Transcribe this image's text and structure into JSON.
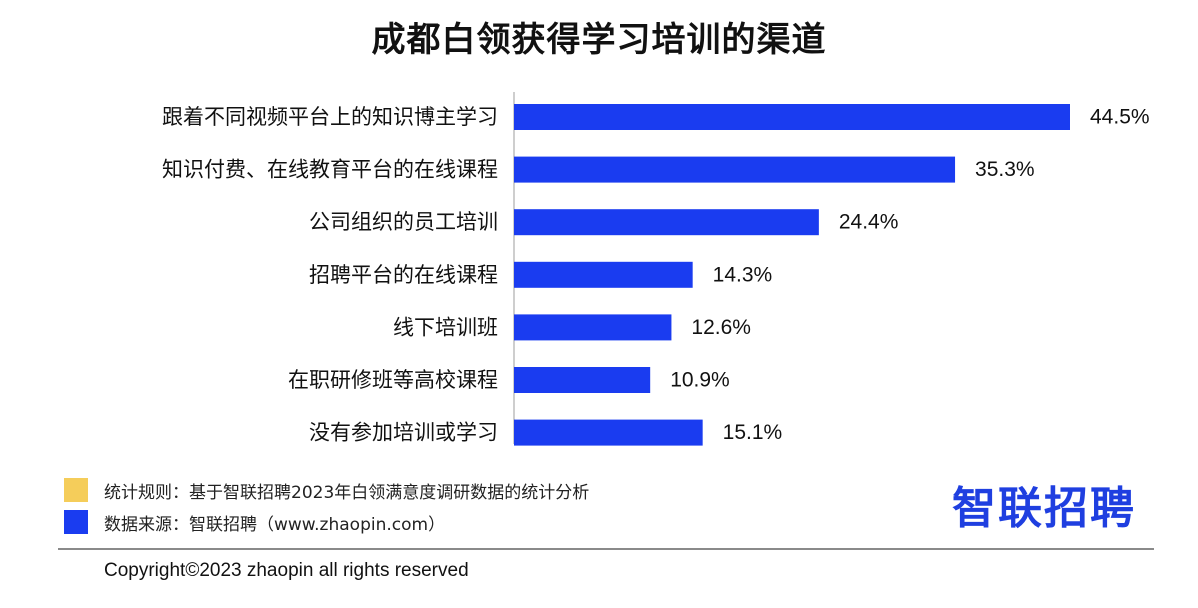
{
  "colors": {
    "bar": "#1a3cf0",
    "rule_swatch": "#f5cd5a",
    "source_swatch": "#1a3cf0",
    "logo": "#1f3fe0"
  },
  "chart_data": {
    "type": "bar",
    "orientation": "horizontal",
    "title": "成都白领获得学习培训的渠道",
    "categories": [
      "跟着不同视频平台上的知识博主学习",
      "知识付费、在线教育平台的在线课程",
      "公司组织的员工培训",
      "招聘平台的在线课程",
      "线下培训班",
      "在职研修班等高校课程",
      "没有参加培训或学习"
    ],
    "values": [
      44.5,
      35.3,
      24.4,
      14.3,
      12.6,
      10.9,
      15.1
    ],
    "value_labels": [
      "44.5%",
      "35.3%",
      "24.4%",
      "14.3%",
      "12.6%",
      "10.9%",
      "15.1%"
    ],
    "unit": "%",
    "xlim": [
      0,
      44.5
    ],
    "grid": false
  },
  "notes": {
    "rule": "统计规则：基于智联招聘2023年白领满意度调研数据的统计分析",
    "source": "数据来源：智联招聘（www.zhaopin.com）"
  },
  "logo_text": "智联招聘",
  "copyright": "Copyright©2023 zhaopin all rights reserved"
}
